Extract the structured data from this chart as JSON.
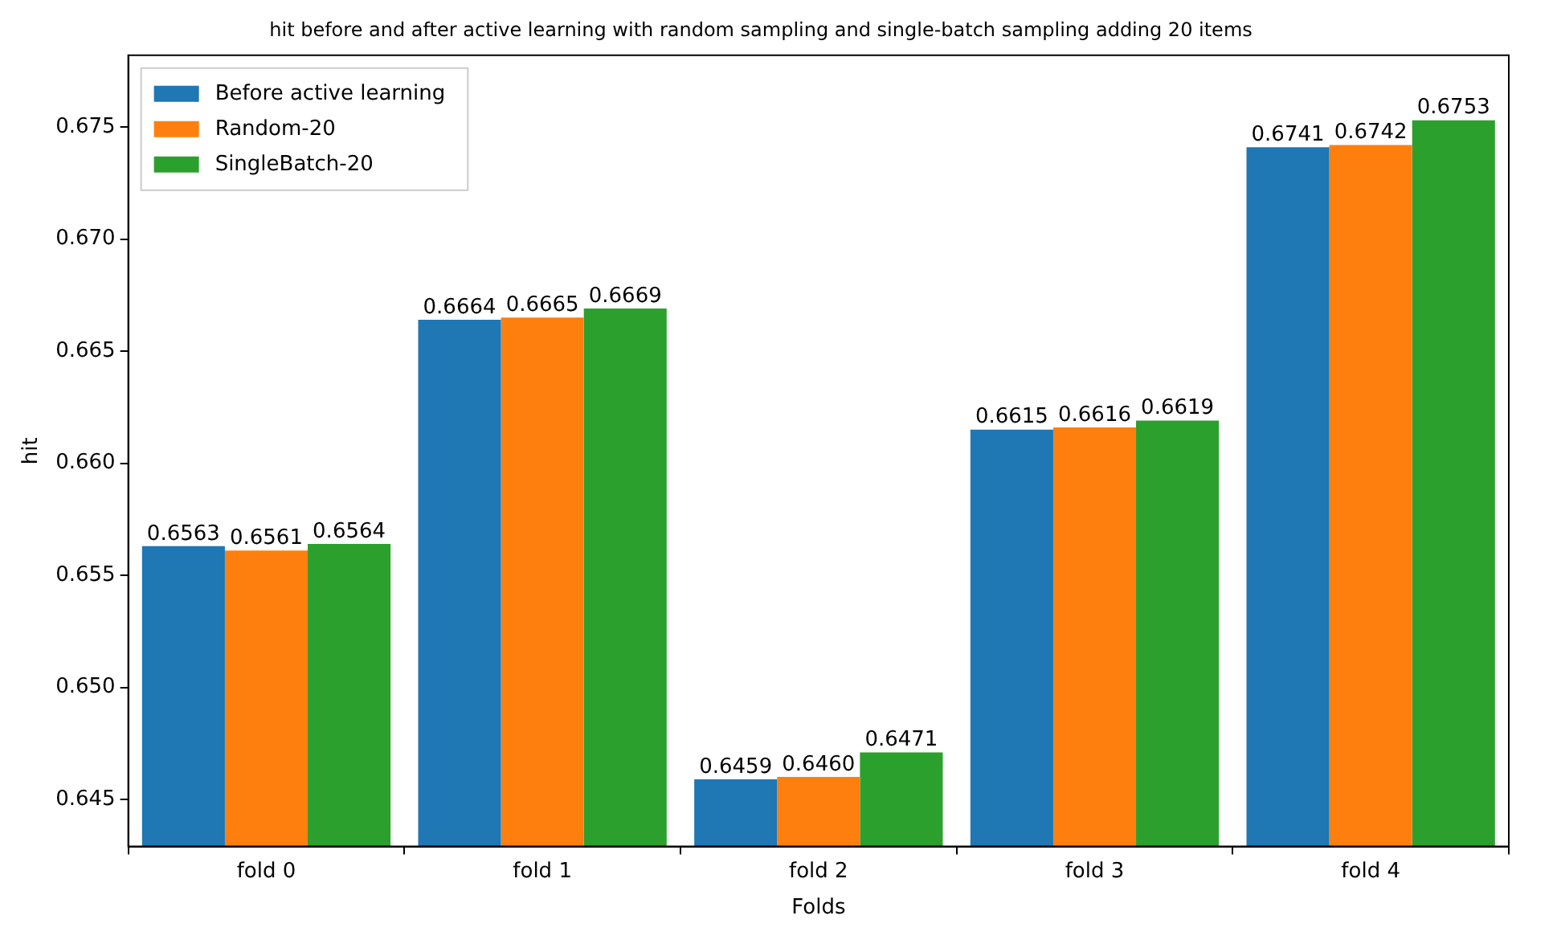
{
  "chart_data": {
    "type": "bar",
    "title": "hit before and after active learning with random sampling and single-batch sampling adding 20 items",
    "xlabel": "Folds",
    "ylabel": "hit",
    "categories": [
      "fold 0",
      "fold 1",
      "fold 2",
      "fold 3",
      "fold 4"
    ],
    "series": [
      {
        "name": "Before active learning",
        "color": "#1f77b4",
        "values": [
          0.6563,
          0.6664,
          0.6459,
          0.6615,
          0.6741
        ],
        "value_labels": [
          "0.6563",
          "0.6664",
          "0.6459",
          "0.6615",
          "0.6741"
        ]
      },
      {
        "name": "Random-20",
        "color": "#ff7f0e",
        "values": [
          0.6561,
          0.6665,
          0.646,
          0.6616,
          0.6742
        ],
        "value_labels": [
          "0.6561",
          "0.6665",
          "0.6460",
          "0.6616",
          "0.6742"
        ]
      },
      {
        "name": "SingleBatch-20",
        "color": "#2ca02c",
        "values": [
          0.6564,
          0.6669,
          0.6471,
          0.6619,
          0.6753
        ],
        "value_labels": [
          "0.6564",
          "0.6669",
          "0.6471",
          "0.6619",
          "0.6753"
        ]
      }
    ],
    "ylim": [
      0.6429,
      0.6782
    ],
    "yticks": [
      0.645,
      {
        "value": 0.65,
        "label": "0.650"
      },
      0.655,
      {
        "value": 0.66,
        "label": "0.660"
      },
      0.665,
      {
        "value": 0.67,
        "label": "0.670"
      },
      0.675
    ],
    "grid": false,
    "legend": "top left"
  }
}
